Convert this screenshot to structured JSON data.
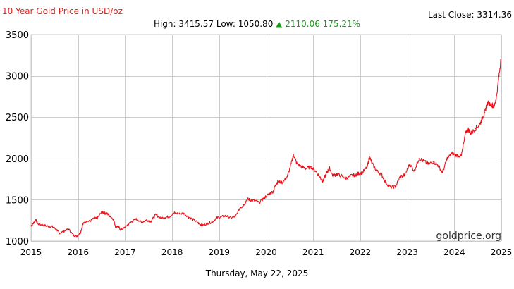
{
  "header": {
    "title": "10 Year Gold Price in USD/oz",
    "last_close_label": "Last Close:",
    "last_close_value": "3314.36",
    "high_label": "High:",
    "high_value": "3415.57",
    "low_label": "Low:",
    "low_value": "1050.80",
    "change_arrow": "▲",
    "change_value": "2110.06",
    "change_pct": "175.21%"
  },
  "footer": {
    "date": "Thursday, May 22, 2025",
    "watermark": "goldprice.org"
  },
  "colors": {
    "line": "#e8141b",
    "title": "#e0211a",
    "change": "#1a9a1a",
    "grid": "#cccccc"
  },
  "chart_data": {
    "type": "line",
    "title": "10 Year Gold Price in USD/oz",
    "xlabel": "",
    "ylabel": "",
    "xlim": [
      2015.0,
      2025.0
    ],
    "ylim": [
      1000,
      3500
    ],
    "x_ticks": [
      2015,
      2016,
      2017,
      2018,
      2019,
      2020,
      2021,
      2022,
      2023,
      2024,
      2025
    ],
    "y_ticks": [
      1000,
      1500,
      2000,
      2500,
      3000,
      3500
    ],
    "grid": true,
    "series": [
      {
        "x": [
          2015.0,
          2015.05,
          2015.1,
          2015.15,
          2015.25,
          2015.35,
          2015.45,
          2015.55,
          2015.6,
          2015.7,
          2015.8,
          2015.9,
          2015.97,
          2016.05,
          2016.1,
          2016.15,
          2016.25,
          2016.35,
          2016.4,
          2016.5,
          2016.55,
          2016.6,
          2016.65,
          2016.75,
          2016.8,
          2016.85,
          2016.9,
          2016.97,
          2017.05,
          2017.15,
          2017.25,
          2017.35,
          2017.45,
          2017.55,
          2017.65,
          2017.75,
          2017.85,
          2017.95,
          2018.05,
          2018.15,
          2018.25,
          2018.35,
          2018.45,
          2018.55,
          2018.6,
          2018.65,
          2018.75,
          2018.85,
          2018.95,
          2019.05,
          2019.15,
          2019.25,
          2019.35,
          2019.45,
          2019.5,
          2019.6,
          2019.65,
          2019.75,
          2019.85,
          2019.95,
          2020.05,
          2020.15,
          2020.2,
          2020.25,
          2020.35,
          2020.45,
          2020.55,
          2020.58,
          2020.65,
          2020.75,
          2020.85,
          2020.95,
          2021.05,
          2021.15,
          2021.2,
          2021.25,
          2021.3,
          2021.35,
          2021.42,
          2021.5,
          2021.6,
          2021.7,
          2021.8,
          2021.9,
          2021.97,
          2022.05,
          2022.15,
          2022.2,
          2022.25,
          2022.35,
          2022.45,
          2022.55,
          2022.65,
          2022.75,
          2022.85,
          2022.95,
          2023.05,
          2023.15,
          2023.25,
          2023.35,
          2023.45,
          2023.55,
          2023.65,
          2023.75,
          2023.85,
          2023.95,
          2024.05,
          2024.15,
          2024.25,
          2024.3,
          2024.35,
          2024.45,
          2024.55,
          2024.6,
          2024.65,
          2024.7,
          2024.8,
          2024.85,
          2024.9,
          2024.95,
          2024.99
        ],
        "y": [
          1185,
          1215,
          1260,
          1205,
          1195,
          1180,
          1175,
          1135,
          1095,
          1120,
          1145,
          1070,
          1060,
          1100,
          1200,
          1240,
          1240,
          1280,
          1270,
          1350,
          1340,
          1335,
          1320,
          1265,
          1170,
          1180,
          1140,
          1155,
          1195,
          1240,
          1270,
          1225,
          1255,
          1240,
          1320,
          1280,
          1285,
          1300,
          1340,
          1330,
          1335,
          1290,
          1260,
          1220,
          1200,
          1190,
          1215,
          1230,
          1280,
          1295,
          1305,
          1280,
          1300,
          1410,
          1420,
          1510,
          1500,
          1490,
          1465,
          1520,
          1565,
          1600,
          1680,
          1720,
          1710,
          1780,
          1970,
          2050,
          1940,
          1900,
          1880,
          1900,
          1850,
          1770,
          1720,
          1780,
          1840,
          1880,
          1790,
          1810,
          1790,
          1760,
          1790,
          1800,
          1820,
          1830,
          1900,
          2020,
          1940,
          1850,
          1810,
          1700,
          1650,
          1660,
          1780,
          1800,
          1930,
          1850,
          2000,
          1970,
          1930,
          1960,
          1920,
          1830,
          2000,
          2060,
          2040,
          2030,
          2330,
          2350,
          2300,
          2360,
          2420,
          2500,
          2560,
          2670,
          2650,
          2630,
          2760,
          3000,
          3200
        ]
      }
    ]
  }
}
